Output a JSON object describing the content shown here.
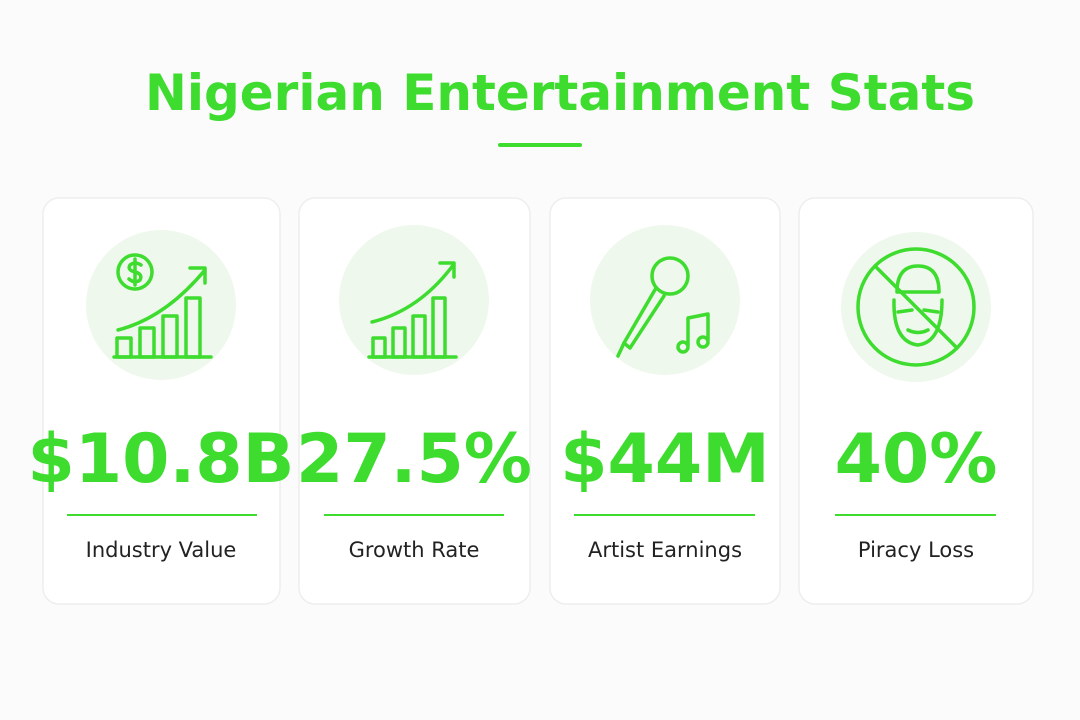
{
  "title": "Nigerian Entertainment Stats",
  "cards": [
    {
      "value": "$10.8B",
      "label": "Industry Value"
    },
    {
      "value": "27.5%",
      "label": "Growth Rate"
    },
    {
      "value": "$44M",
      "label": "Artist Earnings"
    },
    {
      "value": "40%",
      "label": "Piracy Loss"
    }
  ]
}
